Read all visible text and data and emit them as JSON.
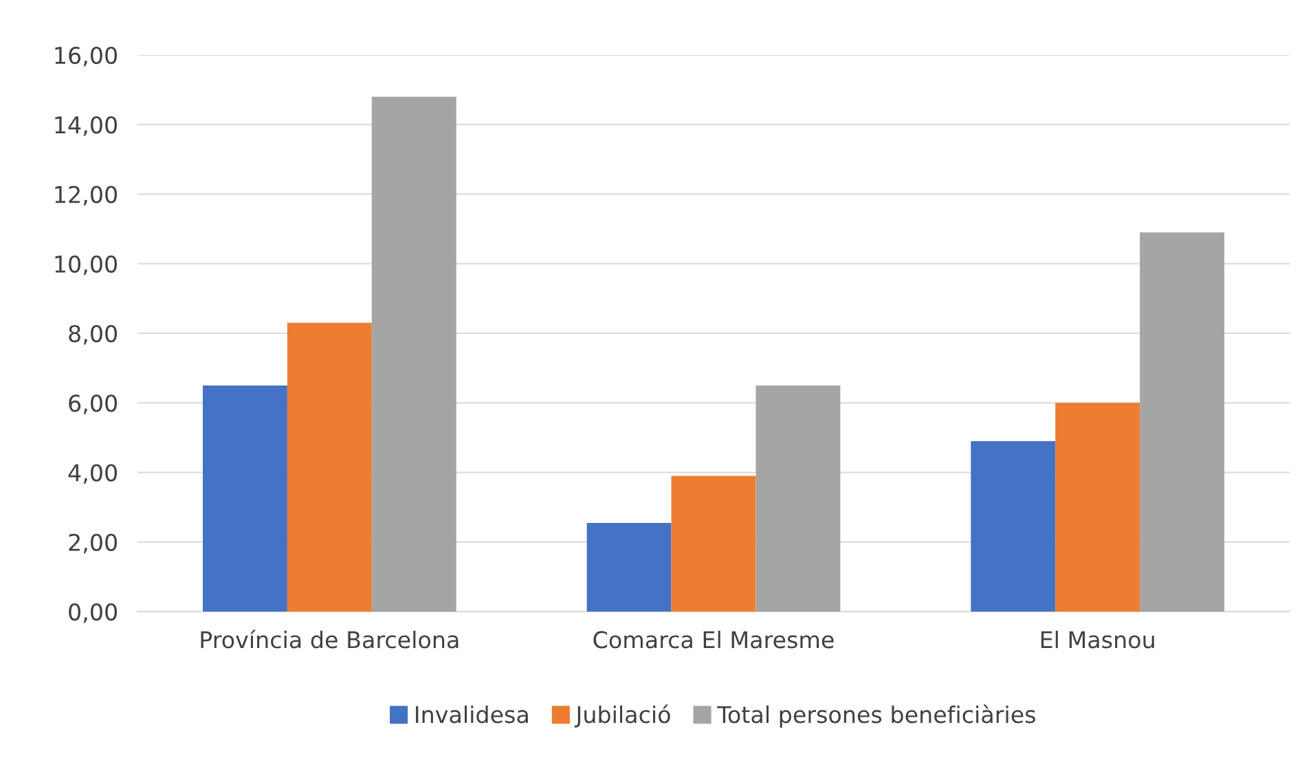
{
  "chart_data": {
    "type": "bar",
    "categories": [
      "Província de Barcelona",
      "Comarca El Maresme",
      "El Masnou"
    ],
    "series": [
      {
        "name": "Invalidesa",
        "color": "#4472c4",
        "values": [
          6.5,
          2.55,
          4.9
        ]
      },
      {
        "name": "Jubilació",
        "color": "#ed7d31",
        "values": [
          8.3,
          3.9,
          6.0
        ]
      },
      {
        "name": "Total persones beneficiàries",
        "color": "#a5a5a5",
        "values": [
          14.8,
          6.5,
          10.9
        ]
      }
    ],
    "ylim": [
      0,
      16
    ],
    "yticks": [
      {
        "value": 0,
        "label": "0,00"
      },
      {
        "value": 2,
        "label": "2,00"
      },
      {
        "value": 4,
        "label": "4,00"
      },
      {
        "value": 6,
        "label": "6,00"
      },
      {
        "value": 8,
        "label": "8,00"
      },
      {
        "value": 10,
        "label": "10,00"
      },
      {
        "value": 12,
        "label": "12,00"
      },
      {
        "value": 14,
        "label": "14,00"
      },
      {
        "value": 16,
        "label": "16,00"
      }
    ],
    "grid": "y",
    "legend": "bottom"
  }
}
